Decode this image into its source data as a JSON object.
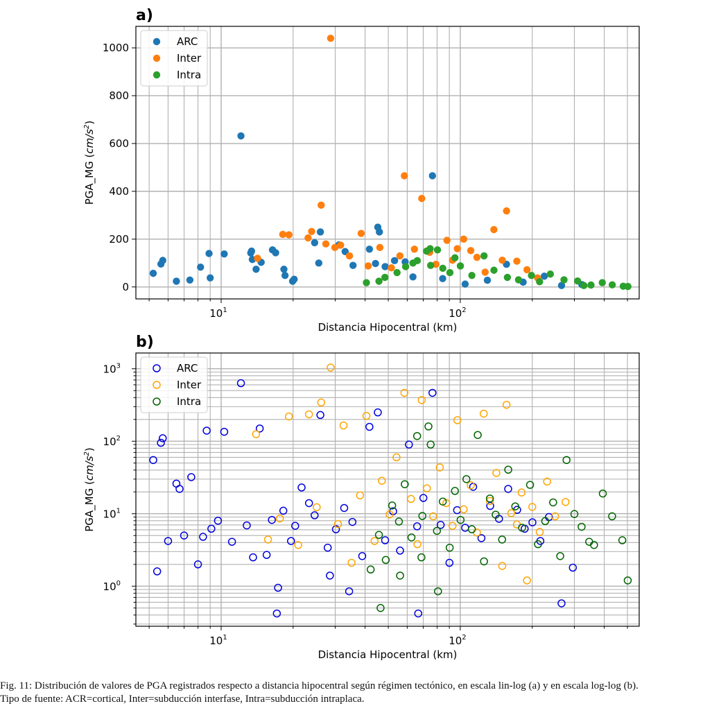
{
  "colors": {
    "arc_filled": "#1f77b4",
    "inter_filled": "#ff7f0e",
    "intra_filled": "#2ca02c",
    "arc_open": "#0000dd",
    "inter_open": "#ffa500",
    "intra_open": "#006400",
    "grid": "#b0b0b0"
  },
  "chart_data": [
    {
      "panel": "a)",
      "type": "scatter",
      "xlabel": "Distancia Hipocentral (km)",
      "ylabel_main": "PGA_MG (",
      "ylabel_unit": "cm/s",
      "ylabel_exp": "2",
      "ylabel_end": ")",
      "xscale": "log",
      "yscale": "linear",
      "xlim": [
        4.4,
        560
      ],
      "ylim": [
        -50,
        1090
      ],
      "xticks": [
        {
          "value": 10,
          "base": "10",
          "exp": "1"
        },
        {
          "value": 100,
          "base": "10",
          "exp": "2"
        }
      ],
      "yticks": [
        0,
        200,
        400,
        600,
        800,
        1000
      ],
      "grid": true,
      "legend": "top-left",
      "marker": "filled",
      "series": [
        {
          "name": "ARC",
          "x": [
            5.2,
            5.6,
            5.7,
            6.5,
            7.4,
            8.2,
            8.9,
            9.0,
            10.3,
            12.1,
            13.3,
            13.4,
            13.5,
            14.0,
            14.7,
            16.4,
            16.9,
            18.3,
            18.5,
            19.9,
            20.2,
            24.6,
            25.6,
            26.0,
            31.1,
            33.0,
            35.6,
            41.7,
            44.2,
            45.2,
            45.9,
            48.5,
            53.1,
            58.8,
            63.4,
            76.5,
            84.4,
            104.8,
            129.8,
            156.0,
            183.2,
            224.6,
            265.1,
            322.5
          ],
          "y": [
            57,
            96,
            111,
            24,
            29,
            83,
            140,
            38,
            138,
            632,
            142,
            150,
            115,
            74,
            103,
            155,
            143,
            74,
            48,
            24,
            32,
            185,
            100,
            230,
            176,
            148,
            90,
            158,
            98,
            250,
            230,
            85,
            110,
            105,
            42,
            465,
            35,
            12,
            28,
            95,
            20,
            45,
            6,
            10
          ]
        },
        {
          "name": "Inter",
          "x": [
            14.2,
            18.1,
            19.2,
            23.1,
            23.9,
            26.2,
            27.4,
            28.7,
            29.9,
            31.6,
            34.4,
            38.5,
            41.2,
            46.1,
            51.5,
            55.9,
            58.4,
            64.3,
            69.0,
            74.5,
            79.1,
            88.0,
            92.8,
            97.2,
            103.3,
            110.6,
            117.4,
            127.0,
            138.2,
            149.8,
            156.1,
            172.4,
            190.1,
            210.5
          ],
          "y": [
            120,
            220,
            218,
            205,
            232,
            342,
            180,
            1040,
            165,
            175,
            130,
            224,
            88,
            165,
            80,
            130,
            465,
            158,
            370,
            145,
            95,
            195,
            112,
            160,
            200,
            152,
            124,
            62,
            240,
            112,
            318,
            108,
            72,
            38
          ]
        },
        {
          "name": "Intra",
          "x": [
            40.5,
            45.7,
            48.4,
            54.4,
            59.1,
            63.4,
            66.1,
            72.3,
            74.8,
            75.2,
            80.3,
            84.5,
            90.5,
            95.0,
            100.1,
            111.8,
            125.7,
            138.3,
            157.4,
            175.2,
            198.5,
            214.6,
            238.0,
            271.5,
            309.4,
            328.7,
            352.1,
            392.5,
            432.0,
            480.2,
            502.4
          ],
          "y": [
            18,
            24,
            40,
            60,
            85,
            100,
            110,
            150,
            160,
            90,
            155,
            78,
            60,
            122,
            88,
            48,
            130,
            70,
            40,
            30,
            48,
            22,
            54,
            30,
            25,
            6,
            8,
            18,
            9,
            3,
            2
          ]
        }
      ]
    },
    {
      "panel": "b)",
      "type": "scatter",
      "xlabel": "Distancia Hipocentral (km)",
      "ylabel_main": "PGA_MG (",
      "ylabel_unit": "cm/s",
      "ylabel_exp": "2",
      "ylabel_end": ")",
      "xscale": "log",
      "yscale": "log",
      "xlim": [
        4.4,
        560
      ],
      "ylim": [
        0.28,
        1650
      ],
      "xticks": [
        {
          "value": 10,
          "base": "10",
          "exp": "1"
        },
        {
          "value": 100,
          "base": "10",
          "exp": "2"
        }
      ],
      "yticks": [
        {
          "value": 1,
          "label": "10",
          "exp": "0"
        },
        {
          "value": 10,
          "label": "10",
          "exp": "1"
        },
        {
          "value": 100,
          "label": "10",
          "exp": "2"
        },
        {
          "value": 1000,
          "label": "10",
          "exp": "3"
        }
      ],
      "grid": true,
      "legend": "top-left",
      "marker": "open",
      "series": [
        {
          "name": "ARC",
          "x": [
            5.2,
            5.6,
            5.7,
            5.4,
            6.0,
            6.5,
            6.7,
            7.0,
            7.5,
            8.0,
            8.4,
            8.7,
            9.1,
            9.7,
            10.3,
            11.1,
            12.1,
            12.8,
            13.6,
            14.5,
            15.5,
            16.3,
            17.3,
            18.2,
            19.6,
            20.4,
            21.7,
            23.3,
            24.6,
            26.0,
            27.9,
            30.2,
            32.7,
            35.4,
            38.9,
            41.7,
            45.2,
            48.5,
            52.4,
            56.0,
            61.0,
            66.0,
            70.1,
            76.5,
            82.8,
            90.1,
            97.0,
            104.8,
            113.2,
            122.6,
            133.4,
            145.2,
            158.6,
            172.9,
            185.9,
            200.3,
            216.2,
            234.9,
            265.1,
            295.7,
            17.1,
            34.3,
            66.7,
            28.5
          ],
          "y": [
            55,
            95,
            110,
            1.6,
            4.2,
            26,
            22,
            5.0,
            32,
            2.0,
            4.8,
            140,
            6.2,
            8.0,
            135,
            4.1,
            632,
            6.9,
            2.5,
            150,
            2.7,
            8.2,
            0.95,
            11.0,
            4.2,
            6.8,
            23.0,
            14.0,
            9.5,
            230,
            3.4,
            6.1,
            12.0,
            7.7,
            2.6,
            158,
            250,
            4.3,
            10.8,
            3.1,
            90,
            6.7,
            16.5,
            465,
            7.0,
            2.1,
            11.2,
            6.4,
            23.5,
            4.6,
            12.8,
            8.5,
            22.0,
            11.3,
            6.2,
            7.6,
            4.2,
            9.0,
            0.58,
            1.8,
            0.42,
            0.85,
            0.42,
            1.4
          ]
        },
        {
          "name": "Inter",
          "x": [
            14.0,
            15.7,
            17.6,
            19.2,
            21.0,
            23.3,
            25.1,
            26.2,
            28.7,
            30.8,
            32.5,
            35.1,
            38.1,
            40.5,
            43.8,
            47.0,
            50.6,
            54.1,
            58.4,
            62.2,
            66.2,
            69.0,
            72.5,
            77.0,
            82.1,
            87.4,
            92.8,
            97.2,
            103.3,
            110.6,
            117.4,
            125.3,
            133.0,
            141.5,
            149.8,
            156.1,
            163.4,
            172.4,
            180.5,
            190.1,
            200.0,
            214.9,
            230.7,
            249.2,
            275.5
          ],
          "y": [
            125,
            4.4,
            8.6,
            220,
            3.7,
            235,
            12.3,
            342,
            1040,
            7.2,
            165,
            2.1,
            17.9,
            224,
            4.2,
            28.5,
            9.8,
            60,
            465,
            16.0,
            3.8,
            370,
            22.4,
            9.2,
            43.5,
            14.0,
            6.8,
            195,
            11.5,
            24.7,
            5.5,
            240,
            15.0,
            36.5,
            1.9,
            318,
            10.2,
            7.1,
            19.6,
            1.2,
            12.4,
            5.6,
            27.8,
            9.2,
            14.5
          ]
        },
        {
          "name": "Intra",
          "x": [
            42.2,
            45.7,
            48.8,
            51.9,
            55.4,
            58.6,
            62.5,
            66.0,
            69.4,
            73.6,
            75.2,
            79.9,
            84.5,
            90.3,
            95.0,
            100.3,
            106.1,
            111.8,
            118.3,
            125.7,
            133.0,
            140.6,
            149.6,
            158.7,
            169.8,
            181.3,
            195.8,
            211.4,
            226.5,
            244.5,
            261.8,
            278.2,
            300.0,
            321.6,
            346.0,
            362.5,
            394.5,
            431.4,
            476.0,
            501.5,
            80.7,
            46.4,
            56.0,
            68.8
          ],
          "y": [
            1.7,
            5.1,
            2.3,
            13.0,
            7.8,
            25.5,
            4.7,
            118,
            9.3,
            160,
            90,
            5.8,
            14.7,
            3.4,
            20.6,
            8.2,
            30.0,
            6.1,
            122,
            2.2,
            16.2,
            9.7,
            4.4,
            40.5,
            12.6,
            6.4,
            25.0,
            3.8,
            7.9,
            14.3,
            2.6,
            55.0,
            9.9,
            6.6,
            4.1,
            3.7,
            19.0,
            9.2,
            4.3,
            1.2,
            0.85,
            0.5,
            1.4,
            2.5
          ]
        }
      ]
    }
  ],
  "caption": {
    "line1": "Fig. 11: Distribución de valores de PGA registrados respecto a distancia hipocentral según régimen tectónico, en escala lin-log (a) y en escala log-log (b).",
    "line2": "Tipo de fuente: ACR=cortical, Inter=subducción interfase, Intra=subducción intraplaca."
  }
}
